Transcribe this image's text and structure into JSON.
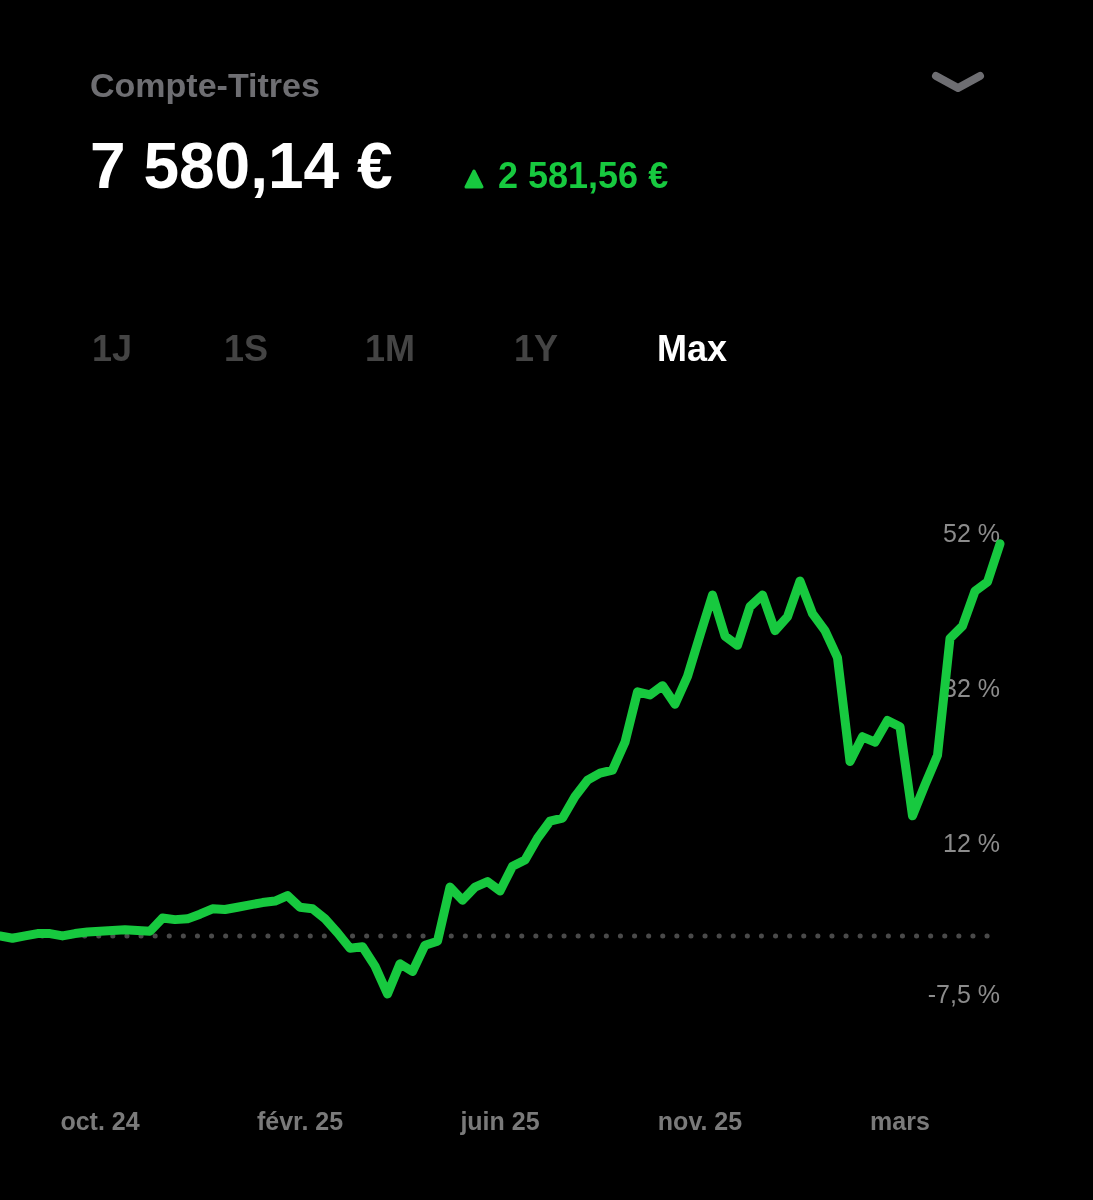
{
  "chart_data": {
    "type": "line",
    "title": "Compte-Titres",
    "annotations": [
      "7 580,14 €",
      "2 581,56 €",
      "1J",
      "1S",
      "1M",
      "1Y",
      "Max"
    ],
    "categories": [
      null,
      null,
      null,
      null,
      null,
      null,
      null,
      null,
      "oct. 24",
      null,
      null,
      null,
      null,
      null,
      null,
      null,
      null,
      null,
      null,
      null,
      null,
      null,
      null,
      null,
      "févr. 25",
      null,
      null,
      null,
      null,
      null,
      null,
      null,
      null,
      null,
      null,
      null,
      null,
      null,
      null,
      null,
      "juin 25",
      null,
      null,
      null,
      null,
      null,
      null,
      null,
      null,
      null,
      null,
      null,
      null,
      null,
      null,
      null,
      "nov. 25",
      null,
      null,
      null,
      null,
      null,
      null,
      null,
      null,
      null,
      null,
      null,
      null,
      null,
      null,
      null,
      "mars",
      null,
      null,
      null,
      null,
      null,
      null,
      null,
      null
    ],
    "ylim": [
      -7.5,
      52
    ],
    "yticks": [
      {
        "value": 52,
        "label": "52 %"
      },
      {
        "value": 32,
        "label": "32 %"
      },
      {
        "value": 12,
        "label": "12 %"
      },
      {
        "value": -7.5,
        "label": "-7,5 %"
      }
    ],
    "marker": "none",
    "line_style": "solid",
    "ref_lines": [
      {
        "axis": "y",
        "value": 0,
        "color": "#4a4a4a",
        "line_style": "dotted"
      }
    ],
    "series": [
      {
        "color": "#17c93f",
        "values": [
          0,
          -0.3,
          0,
          0.3,
          0.3,
          0,
          0.3,
          0.5,
          0.6,
          0.7,
          0.8,
          0.7,
          0.6,
          2.3,
          2.1,
          2.2,
          2.8,
          3.5,
          3.4,
          3.7,
          4.0,
          4.3,
          4.5,
          5.2,
          3.7,
          3.5,
          2.2,
          0.4,
          -1.6,
          -1.4,
          -3.9,
          -7.5,
          -3.6,
          -4.6,
          -1.2,
          -0.7,
          6.3,
          4.6,
          6.3,
          7.0,
          5.8,
          9.0,
          9.8,
          12.6,
          14.8,
          15.2,
          18.0,
          20.1,
          21.0,
          21.4,
          25.0,
          31.5,
          31.1,
          32.3,
          29.9,
          33.5,
          38.8,
          44.0,
          38.7,
          37.5,
          42.5,
          44.0,
          39.4,
          41.2,
          45.8,
          41.6,
          39.4,
          35.9,
          22.5,
          25.7,
          25.0,
          27.8,
          27.0,
          15.5,
          19.5,
          23.3,
          38.4,
          40.0,
          44.5,
          45.7,
          50.6
        ]
      }
    ]
  }
}
